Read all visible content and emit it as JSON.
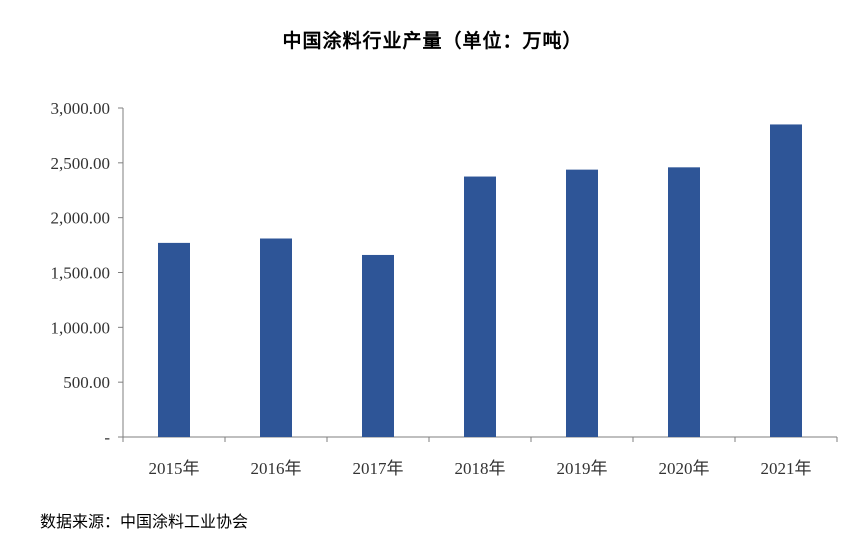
{
  "chart_data": {
    "type": "bar",
    "title": "中国涂料行业产量（单位：万吨）",
    "categories": [
      "2015年",
      "2016年",
      "2017年",
      "2018年",
      "2019年",
      "2020年",
      "2021年"
    ],
    "values": [
      1770,
      1810,
      1660,
      2375,
      2438,
      2459,
      2850
    ],
    "ylim": [
      0,
      3000
    ],
    "yticks": [
      0,
      500,
      1000,
      1500,
      2000,
      2500,
      3000
    ],
    "ytick_labels": [
      "-",
      "500.00",
      "1,000.00",
      "1,500.00",
      "2,000.00",
      "2,500.00",
      "3,000.00"
    ],
    "xlabel": "",
    "ylabel": "",
    "grid": false,
    "bar_color": "#2E5597"
  },
  "source_text": "数据来源：中国涂料工业协会"
}
